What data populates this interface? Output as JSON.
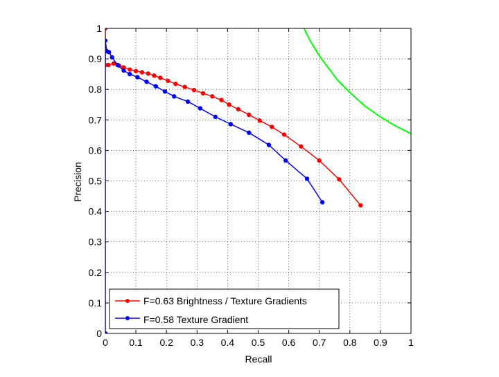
{
  "chart_data": {
    "type": "line",
    "xlabel": "Recall",
    "ylabel": "Precision",
    "xlim": [
      0,
      1
    ],
    "ylim": [
      0,
      1
    ],
    "xticks": [
      "0",
      "0.1",
      "0.2",
      "0.3",
      "0.4",
      "0.5",
      "0.6",
      "0.7",
      "0.8",
      "0.9",
      "1"
    ],
    "yticks": [
      "0",
      "0.1",
      "0.2",
      "0.3",
      "0.4",
      "0.5",
      "0.6",
      "0.7",
      "0.8",
      "0.9",
      "1"
    ],
    "grid": true,
    "legend_position": "bottom-left",
    "series": [
      {
        "name": "F=0.63 Brightness / Texture Gradients",
        "color": "#ff0000",
        "marker": "circle",
        "points": [
          [
            0.0,
            1.0
          ],
          [
            0.0,
            0.88
          ],
          [
            0.01,
            0.88
          ],
          [
            0.027,
            0.885
          ],
          [
            0.045,
            0.878
          ],
          [
            0.06,
            0.872
          ],
          [
            0.08,
            0.865
          ],
          [
            0.1,
            0.86
          ],
          [
            0.12,
            0.856
          ],
          [
            0.14,
            0.852
          ],
          [
            0.16,
            0.845
          ],
          [
            0.18,
            0.838
          ],
          [
            0.205,
            0.828
          ],
          [
            0.23,
            0.818
          ],
          [
            0.26,
            0.808
          ],
          [
            0.29,
            0.798
          ],
          [
            0.32,
            0.787
          ],
          [
            0.35,
            0.777
          ],
          [
            0.38,
            0.765
          ],
          [
            0.405,
            0.75
          ],
          [
            0.435,
            0.735
          ],
          [
            0.47,
            0.717
          ],
          [
            0.505,
            0.698
          ],
          [
            0.545,
            0.677
          ],
          [
            0.585,
            0.652
          ],
          [
            0.64,
            0.613
          ],
          [
            0.7,
            0.567
          ],
          [
            0.765,
            0.505
          ],
          [
            0.835,
            0.42
          ]
        ]
      },
      {
        "name": "F=0.58 Texture Gradient",
        "color": "#0000ff",
        "marker": "circle",
        "points": [
          [
            0.0,
            0.0
          ],
          [
            0.0,
            0.96
          ],
          [
            0.005,
            0.925
          ],
          [
            0.012,
            0.922
          ],
          [
            0.022,
            0.905
          ],
          [
            0.04,
            0.88
          ],
          [
            0.06,
            0.862
          ],
          [
            0.08,
            0.85
          ],
          [
            0.105,
            0.84
          ],
          [
            0.135,
            0.825
          ],
          [
            0.165,
            0.81
          ],
          [
            0.195,
            0.793
          ],
          [
            0.225,
            0.777
          ],
          [
            0.27,
            0.76
          ],
          [
            0.31,
            0.738
          ],
          [
            0.36,
            0.71
          ],
          [
            0.41,
            0.686
          ],
          [
            0.47,
            0.658
          ],
          [
            0.535,
            0.618
          ],
          [
            0.59,
            0.567
          ],
          [
            0.66,
            0.507
          ],
          [
            0.71,
            0.43
          ]
        ]
      },
      {
        "name": "",
        "color": "#00ff00",
        "marker": "none",
        "points": [
          [
            0.65,
            1.0
          ],
          [
            0.67,
            0.96
          ],
          [
            0.7,
            0.91
          ],
          [
            0.73,
            0.87
          ],
          [
            0.76,
            0.83
          ],
          [
            0.8,
            0.79
          ],
          [
            0.85,
            0.745
          ],
          [
            0.9,
            0.71
          ],
          [
            0.95,
            0.68
          ],
          [
            1.0,
            0.655
          ]
        ]
      }
    ]
  }
}
